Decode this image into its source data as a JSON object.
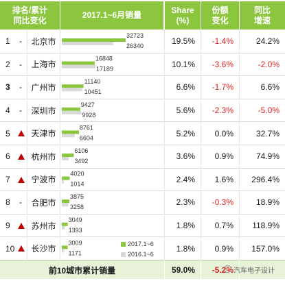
{
  "headers": {
    "rank": "排名/累计同比变化",
    "volume": "2017.1~6月销量",
    "share": "Share (%)",
    "share_change": "份额变化",
    "yoy": "同比增速"
  },
  "rows": [
    {
      "rank": "1",
      "trend": "-",
      "city": "北京市",
      "v2017": "32723",
      "v2016": "26340",
      "share": "19.5%",
      "change": "-1.4%",
      "yoy": "24.2%"
    },
    {
      "rank": "2",
      "trend": "-",
      "city": "上海市",
      "v2017": "16848",
      "v2016": "17189",
      "share": "10.1%",
      "change": "-3.6%",
      "yoy": "-2.0%"
    },
    {
      "rank": "3",
      "trend": "-",
      "city": "广州市",
      "v2017": "11140",
      "v2016": "10451",
      "share": "6.6%",
      "change": "-1.7%",
      "yoy": "6.6%"
    },
    {
      "rank": "4",
      "trend": "-",
      "city": "深圳市",
      "v2017": "9427",
      "v2016": "9928",
      "share": "5.6%",
      "change": "-2.3%",
      "yoy": "-5.0%"
    },
    {
      "rank": "5",
      "trend": "up",
      "city": "天津市",
      "v2017": "8761",
      "v2016": "6604",
      "share": "5.2%",
      "change": "0.0%",
      "yoy": "32.7%"
    },
    {
      "rank": "6",
      "trend": "up",
      "city": "杭州市",
      "v2017": "6106",
      "v2016": "3492",
      "share": "3.6%",
      "change": "0.9%",
      "yoy": "74.9%"
    },
    {
      "rank": "7",
      "trend": "up",
      "city": "宁波市",
      "v2017": "4020",
      "v2016": "1014",
      "share": "2.4%",
      "change": "1.6%",
      "yoy": "296.4%"
    },
    {
      "rank": "8",
      "trend": "-",
      "city": "合肥市",
      "v2017": "3875",
      "v2016": "3258",
      "share": "2.3%",
      "change": "-0.3%",
      "yoy": "18.9%"
    },
    {
      "rank": "9",
      "trend": "up",
      "city": "苏州市",
      "v2017": "3049",
      "v2016": "1393",
      "share": "1.8%",
      "change": "0.7%",
      "yoy": "118.9%"
    },
    {
      "rank": "10",
      "trend": "up",
      "city": "长沙市",
      "v2017": "3009",
      "v2016": "1171",
      "share": "1.8%",
      "change": "0.9%",
      "yoy": "157.0%"
    }
  ],
  "footer": {
    "label": "前10城市累计销量",
    "share": "59.0%",
    "change": "-5.2%"
  },
  "watermark": "汽车电子设计",
  "colors": {
    "header": "#8cc63e",
    "bar2017": "#8cc63e",
    "bar2016": "#d9d9d9",
    "negative": "#e02020",
    "up_arrow": "#c00000"
  },
  "chart_data": {
    "type": "bar",
    "title": "2017.1~6月销量",
    "categories": [
      "北京市",
      "上海市",
      "广州市",
      "深圳市",
      "天津市",
      "杭州市",
      "宁波市",
      "合肥市",
      "苏州市",
      "长沙市"
    ],
    "series": [
      {
        "name": "2017.1~6",
        "values": [
          32723,
          16848,
          11140,
          9427,
          8761,
          6106,
          4020,
          3875,
          3049,
          3009
        ]
      },
      {
        "name": "2016.1~6",
        "values": [
          26340,
          17189,
          10451,
          9928,
          6604,
          3492,
          1014,
          3258,
          1393,
          1171
        ]
      }
    ],
    "orientation": "horizontal",
    "xlim": [
      0,
      32723
    ]
  }
}
